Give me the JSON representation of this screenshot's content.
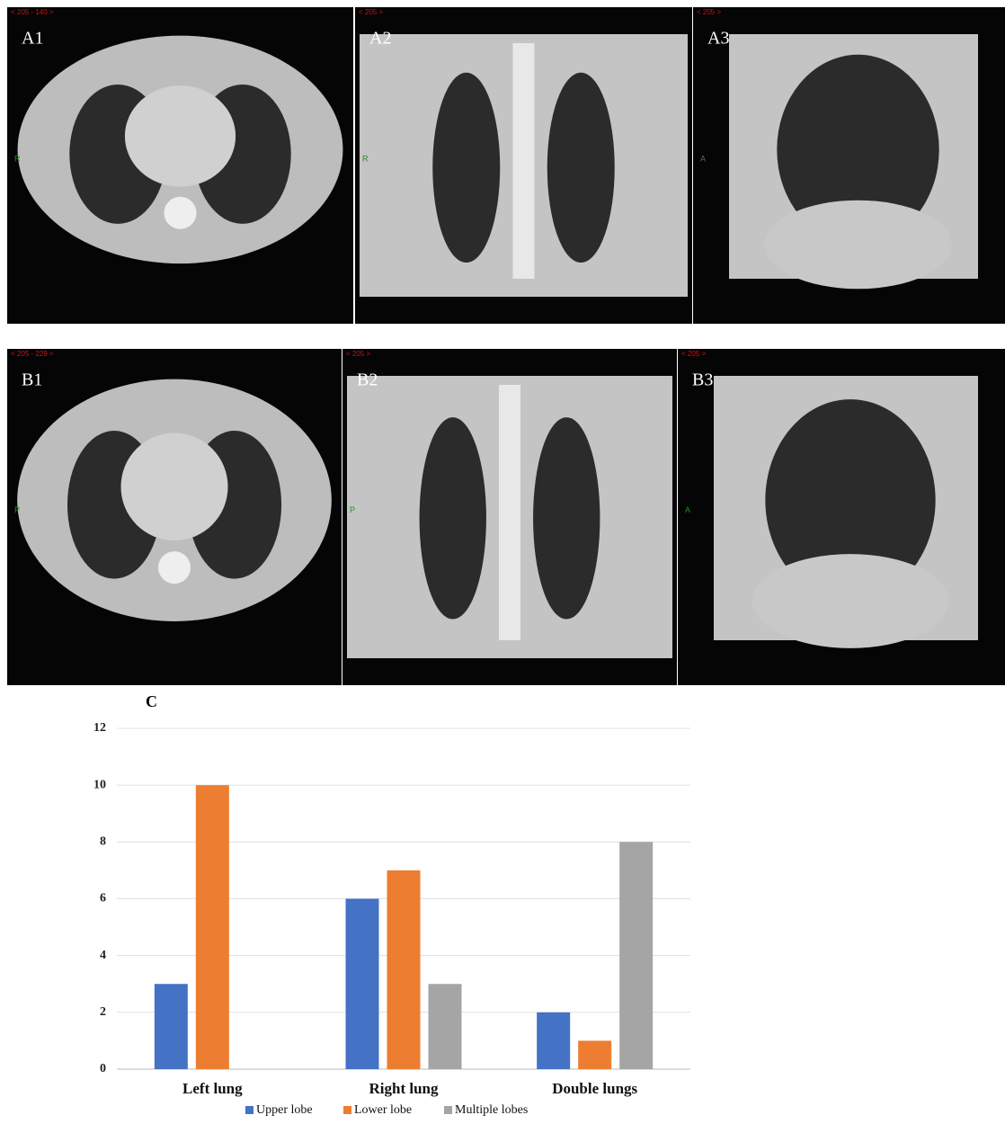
{
  "panels": [
    {
      "label": "A1",
      "overlay": "< 205 - 140 >",
      "orientation": "R"
    },
    {
      "label": "A2",
      "overlay": "< 205 >",
      "orientation": "R"
    },
    {
      "label": "A3",
      "overlay": "< 205 >",
      "orientation": "A"
    },
    {
      "label": "B1",
      "overlay": "< 205 - 229 >",
      "orientation": "P"
    },
    {
      "label": "B2",
      "overlay": "< 205 >",
      "orientation": "P"
    },
    {
      "label": "B3",
      "overlay": "< 205 >",
      "orientation": "A"
    }
  ],
  "chart_data": {
    "type": "bar",
    "title": "C",
    "categories": [
      "Left lung",
      "Right lung",
      "Double lungs"
    ],
    "series": [
      {
        "name": "Upper lobe",
        "color": "#4472c4",
        "values": [
          3,
          6,
          2
        ]
      },
      {
        "name": "Lower lobe",
        "color": "#ed7d31",
        "values": [
          10,
          7,
          1
        ]
      },
      {
        "name": "Multiple lobes",
        "color": "#a5a5a5",
        "values": [
          0,
          3,
          8
        ]
      }
    ],
    "ylim": [
      0,
      12
    ],
    "yticks": [
      0,
      2,
      4,
      6,
      8,
      10,
      12
    ],
    "grid": true,
    "legend": "bottom"
  }
}
